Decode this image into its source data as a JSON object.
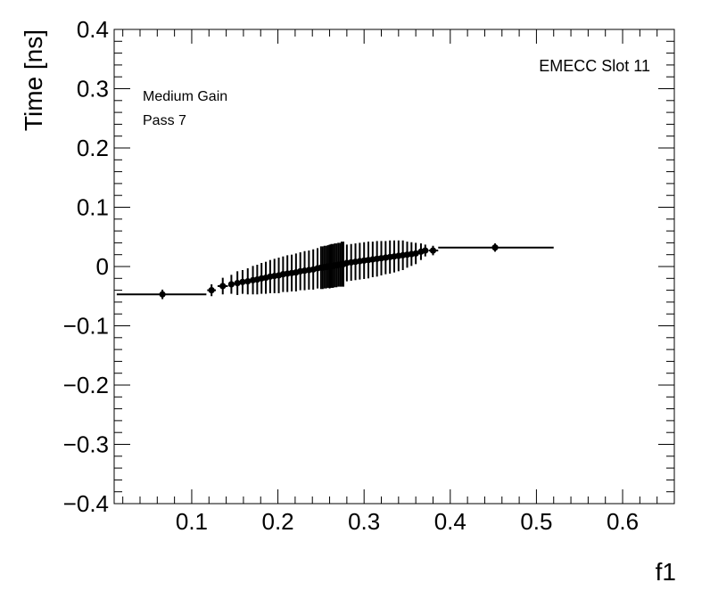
{
  "chart_data": {
    "type": "scatter",
    "xlabel": "f1",
    "ylabel": "Time [ns]",
    "xlim": [
      0.01,
      0.66
    ],
    "ylim": [
      -0.4,
      0.4
    ],
    "grid": false,
    "x_ticks": [
      {
        "value": 0.1,
        "label": "0.1"
      },
      {
        "value": 0.2,
        "label": "0.2"
      },
      {
        "value": 0.3,
        "label": "0.3"
      },
      {
        "value": 0.4,
        "label": "0.4"
      },
      {
        "value": 0.5,
        "label": "0.5"
      },
      {
        "value": 0.6,
        "label": "0.6"
      }
    ],
    "y_ticks": [
      {
        "value": 0.4,
        "label": "0.4"
      },
      {
        "value": 0.3,
        "label": "0.3"
      },
      {
        "value": 0.2,
        "label": "0.2"
      },
      {
        "value": 0.1,
        "label": "0.1"
      },
      {
        "value": 0.0,
        "label": "0"
      },
      {
        "value": -0.1,
        "label": "−0.1"
      },
      {
        "value": -0.2,
        "label": "−0.2"
      },
      {
        "value": -0.3,
        "label": "−0.3"
      },
      {
        "value": -0.4,
        "label": "−0.4"
      }
    ],
    "annotations": {
      "slot": "EMECC Slot 11",
      "gain": "Medium Gain",
      "pass": "Pass 7"
    },
    "series": [
      {
        "points": [
          {
            "x": 0.066,
            "y": -0.047,
            "xlo": 0.013,
            "xhi": 0.117,
            "ey": 0.008
          },
          {
            "x": 0.123,
            "y": -0.04,
            "xlo": 0.118,
            "xhi": 0.128,
            "ey": 0.01
          },
          {
            "x": 0.136,
            "y": -0.033,
            "xlo": 0.13,
            "xhi": 0.142,
            "ey": 0.014
          },
          {
            "x": 0.146,
            "y": -0.03,
            "xlo": 0.143,
            "xhi": 0.149,
            "ey": 0.016
          },
          {
            "x": 0.153,
            "y": -0.028,
            "ey": 0.02
          },
          {
            "x": 0.159,
            "y": -0.026,
            "ey": 0.02
          },
          {
            "x": 0.165,
            "y": -0.025,
            "ey": 0.022
          },
          {
            "x": 0.171,
            "y": -0.023,
            "ey": 0.024
          },
          {
            "x": 0.176,
            "y": -0.022,
            "ey": 0.025
          },
          {
            "x": 0.181,
            "y": -0.02,
            "ey": 0.026
          },
          {
            "x": 0.186,
            "y": -0.019,
            "ey": 0.027
          },
          {
            "x": 0.191,
            "y": -0.017,
            "ey": 0.028
          },
          {
            "x": 0.196,
            "y": -0.016,
            "ey": 0.029
          },
          {
            "x": 0.201,
            "y": -0.015,
            "ey": 0.03
          },
          {
            "x": 0.206,
            "y": -0.013,
            "ey": 0.03
          },
          {
            "x": 0.211,
            "y": -0.012,
            "ey": 0.031
          },
          {
            "x": 0.216,
            "y": -0.011,
            "ey": 0.031
          },
          {
            "x": 0.221,
            "y": -0.01,
            "ey": 0.032
          },
          {
            "x": 0.226,
            "y": -0.008,
            "ey": 0.032
          },
          {
            "x": 0.231,
            "y": -0.007,
            "ey": 0.033
          },
          {
            "x": 0.236,
            "y": -0.006,
            "ey": 0.033
          },
          {
            "x": 0.241,
            "y": -0.005,
            "ey": 0.034
          },
          {
            "x": 0.246,
            "y": -0.003,
            "ey": 0.034
          },
          {
            "x": 0.25,
            "y": -0.002,
            "ey": 0.036
          },
          {
            "x": 0.252,
            "y": -0.002,
            "ey": 0.036
          },
          {
            "x": 0.254,
            "y": -0.001,
            "ey": 0.036
          },
          {
            "x": 0.256,
            "y": -0.001,
            "ey": 0.036
          },
          {
            "x": 0.258,
            "y": 0.0,
            "ey": 0.036
          },
          {
            "x": 0.26,
            "y": 0.0,
            "ey": 0.037
          },
          {
            "x": 0.262,
            "y": 0.001,
            "ey": 0.037
          },
          {
            "x": 0.264,
            "y": 0.001,
            "ey": 0.037
          },
          {
            "x": 0.266,
            "y": 0.002,
            "ey": 0.037
          },
          {
            "x": 0.268,
            "y": 0.002,
            "ey": 0.037
          },
          {
            "x": 0.27,
            "y": 0.003,
            "ey": 0.037
          },
          {
            "x": 0.272,
            "y": 0.003,
            "ey": 0.037
          },
          {
            "x": 0.274,
            "y": 0.004,
            "ey": 0.038
          },
          {
            "x": 0.276,
            "y": 0.004,
            "ey": 0.038
          },
          {
            "x": 0.28,
            "y": 0.006,
            "ey": 0.031
          },
          {
            "x": 0.285,
            "y": 0.007,
            "ey": 0.031
          },
          {
            "x": 0.29,
            "y": 0.008,
            "ey": 0.031
          },
          {
            "x": 0.295,
            "y": 0.009,
            "ey": 0.031
          },
          {
            "x": 0.3,
            "y": 0.01,
            "ey": 0.031
          },
          {
            "x": 0.305,
            "y": 0.011,
            "ey": 0.031
          },
          {
            "x": 0.31,
            "y": 0.012,
            "ey": 0.03
          },
          {
            "x": 0.315,
            "y": 0.013,
            "ey": 0.03
          },
          {
            "x": 0.32,
            "y": 0.014,
            "ey": 0.029
          },
          {
            "x": 0.325,
            "y": 0.015,
            "ey": 0.028
          },
          {
            "x": 0.33,
            "y": 0.016,
            "ey": 0.028
          },
          {
            "x": 0.335,
            "y": 0.017,
            "ey": 0.027
          },
          {
            "x": 0.34,
            "y": 0.018,
            "ey": 0.026
          },
          {
            "x": 0.345,
            "y": 0.019,
            "ey": 0.025
          },
          {
            "x": 0.35,
            "y": 0.02,
            "ey": 0.022
          },
          {
            "x": 0.355,
            "y": 0.021,
            "ey": 0.02
          },
          {
            "x": 0.36,
            "y": 0.022,
            "ey": 0.018
          },
          {
            "x": 0.366,
            "y": 0.025,
            "ey": 0.014
          },
          {
            "x": 0.371,
            "y": 0.027,
            "ey": 0.01
          },
          {
            "x": 0.38,
            "y": 0.027,
            "xlo": 0.375,
            "xhi": 0.386,
            "ey": 0.008
          },
          {
            "x": 0.452,
            "y": 0.032,
            "xlo": 0.386,
            "xhi": 0.52,
            "ey": 0.007
          }
        ]
      }
    ]
  }
}
